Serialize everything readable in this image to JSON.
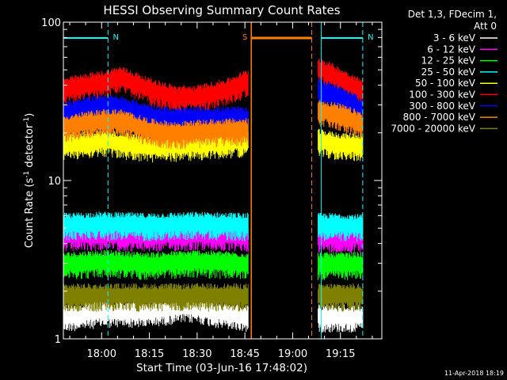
{
  "chart_data": {
    "type": "line",
    "title": "HESSI Observing Summary Count Rates",
    "xlabel": "Start Time (03-Jun-16 17:48:02)",
    "ylabel": "Count Rate (s",
    "ylabel_exp1": "-1",
    "ylabel_mid": " detector",
    "ylabel_exp2": "-1",
    "ylabel_end": ")",
    "y_scale": "log",
    "ylim": [
      1,
      100
    ],
    "xlim": [
      "17:48",
      "19:28"
    ],
    "x_ticks": [
      "18:00",
      "18:15",
      "18:30",
      "18:45",
      "19:00",
      "19:15"
    ],
    "y_ticks": [
      "1",
      "10",
      "100"
    ],
    "legend": {
      "placement": "right",
      "header": [
        "Det 1,3, FDecim 1,",
        "Att 0"
      ]
    },
    "timestamp": "11-Apr-2018 18:19",
    "data_gaps": [
      [
        "18:46",
        "19:07"
      ]
    ],
    "annotations": [
      {
        "label": "N",
        "kind": "night",
        "start": "17:48",
        "end": "18:02",
        "color": "#00ffff"
      },
      {
        "label": "N",
        "kind": "night",
        "start": "19:09",
        "end": "19:22",
        "color": "#00ffff"
      },
      {
        "label": "S",
        "kind": "saa",
        "start": "18:47",
        "end": "19:06",
        "color": "#ff7f00"
      }
    ],
    "series": [
      {
        "name": "3 - 6 keV",
        "color": "#ffffff",
        "segments": [
          {
            "x": [
              "17:48",
              "18:00",
              "18:15",
              "18:25",
              "18:30",
              "18:35",
              "18:46"
            ],
            "y": [
              1.4,
              1.5,
              1.5,
              1.6,
              1.6,
              1.5,
              1.4
            ]
          },
          {
            "x": [
              "19:08",
              "19:15",
              "19:22"
            ],
            "y": [
              1.4,
              1.4,
              1.4
            ]
          }
        ]
      },
      {
        "name": "6 - 12 keV",
        "color": "#ff00ff",
        "segments": [
          {
            "x": [
              "17:48",
              "18:00",
              "18:15",
              "18:30",
              "18:46"
            ],
            "y": [
              4.5,
              4.6,
              4.5,
              4.6,
              4.5
            ]
          },
          {
            "x": [
              "19:08",
              "19:15",
              "19:22"
            ],
            "y": [
              4.5,
              4.4,
              4.5
            ]
          }
        ]
      },
      {
        "name": "12 - 25 keV",
        "color": "#00ff00",
        "segments": [
          {
            "x": [
              "17:48",
              "18:00",
              "18:15",
              "18:30",
              "18:46"
            ],
            "y": [
              3.0,
              3.1,
              3.0,
              3.1,
              3.0
            ]
          },
          {
            "x": [
              "19:08",
              "19:15",
              "19:22"
            ],
            "y": [
              3.0,
              3.0,
              3.0
            ]
          }
        ]
      },
      {
        "name": "25 - 50 keV",
        "color": "#00ffff",
        "segments": [
          {
            "x": [
              "17:48",
              "18:00",
              "18:15",
              "18:30",
              "18:46"
            ],
            "y": [
              5.3,
              5.4,
              5.3,
              5.4,
              5.3
            ]
          },
          {
            "x": [
              "19:08",
              "19:15",
              "19:22"
            ],
            "y": [
              5.3,
              5.3,
              5.2
            ]
          }
        ]
      },
      {
        "name": "50 - 100 keV",
        "color": "#ffff00",
        "segments": [
          {
            "x": [
              "17:48",
              "18:00",
              "18:15",
              "18:30",
              "18:46"
            ],
            "y": [
              17,
              18,
              16.5,
              17,
              18
            ]
          },
          {
            "x": [
              "19:08",
              "19:15",
              "19:22"
            ],
            "y": [
              18,
              17,
              17
            ]
          }
        ]
      },
      {
        "name": "100 - 300 keV",
        "color": "#ff0000",
        "segments": [
          {
            "x": [
              "17:48",
              "18:00",
              "18:06",
              "18:15",
              "18:23",
              "18:30",
              "18:40",
              "18:46"
            ],
            "y": [
              38,
              42,
              45,
              38,
              34,
              34,
              38,
              43
            ]
          },
          {
            "x": [
              "19:08",
              "19:15",
              "19:22"
            ],
            "y": [
              52,
              44,
              37
            ]
          }
        ]
      },
      {
        "name": "300 - 800 keV",
        "color": "#0000ff",
        "segments": [
          {
            "x": [
              "17:48",
              "18:00",
              "18:06",
              "18:15",
              "18:23",
              "18:30",
              "18:40",
              "18:46"
            ],
            "y": [
              27,
              30,
              29,
              26,
              24.5,
              25,
              25,
              25
            ]
          },
          {
            "x": [
              "19:08",
              "19:15",
              "19:22"
            ],
            "y": [
              38,
              34,
              28
            ]
          }
        ]
      },
      {
        "name": "800 - 7000 keV",
        "color": "#ff7f00",
        "segments": [
          {
            "x": [
              "17:48",
              "18:00",
              "18:06",
              "18:15",
              "18:23",
              "18:30",
              "18:40",
              "18:46"
            ],
            "y": [
              22,
              24,
              24,
              21,
              20,
              20.5,
              21,
              21
            ]
          },
          {
            "x": [
              "19:08",
              "19:15",
              "19:22"
            ],
            "y": [
              28,
              26,
              23
            ]
          }
        ]
      },
      {
        "name": "7000 - 20000 keV",
        "color": "#808000",
        "segments": [
          {
            "x": [
              "17:48",
              "18:00",
              "18:15",
              "18:30",
              "18:46"
            ],
            "y": [
              1.9,
              1.9,
              1.9,
              1.9,
              1.9
            ]
          },
          {
            "x": [
              "19:08",
              "19:15",
              "19:22"
            ],
            "y": [
              1.9,
              1.9,
              1.9
            ]
          }
        ]
      }
    ]
  }
}
